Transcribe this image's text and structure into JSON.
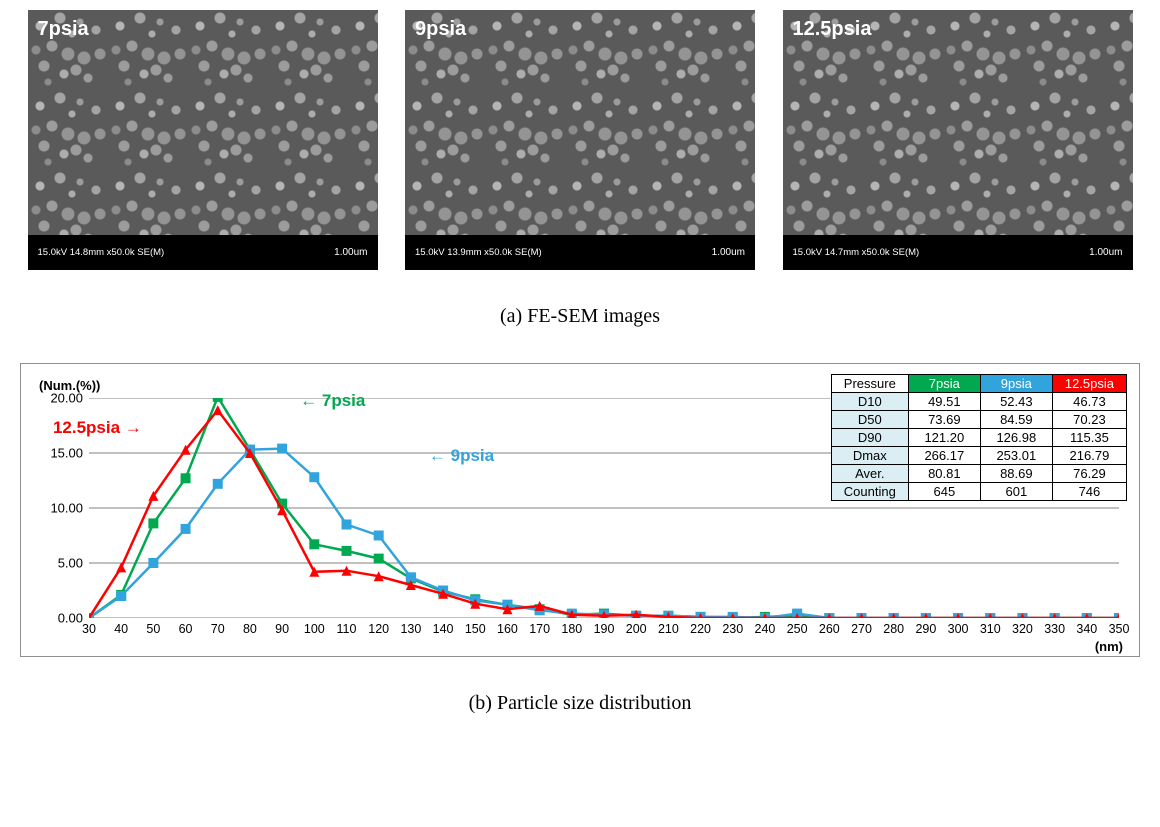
{
  "sem": {
    "panels": [
      {
        "label": "7psia",
        "footer": "15.0kV 14.8mm x50.0k SE(M)",
        "scale": "1.00um"
      },
      {
        "label": "9psia",
        "footer": "15.0kV 13.9mm x50.0k SE(M)",
        "scale": "1.00um"
      },
      {
        "label": "12.5psia",
        "footer": "15.0kV 14.7mm x50.0k SE(M)",
        "scale": "1.00um"
      }
    ],
    "caption": "(a) FE-SEM images"
  },
  "chart": {
    "type": "line",
    "ylabel": "(Num.(%))",
    "xlabel": "(nm)",
    "xmin": 30,
    "xmax": 350,
    "ymin": 0,
    "ymax": 20,
    "yticks": [
      "0.00",
      "5.00",
      "10.00",
      "15.00",
      "20.00"
    ],
    "xticks": [
      30,
      40,
      50,
      60,
      70,
      80,
      90,
      100,
      110,
      120,
      130,
      140,
      150,
      160,
      170,
      180,
      190,
      200,
      210,
      220,
      230,
      240,
      250,
      260,
      270,
      280,
      290,
      300,
      310,
      320,
      330,
      340,
      350
    ],
    "gridline_color": "#808080",
    "border_color": "#808080",
    "background_color": "#ffffff",
    "line_width": 2.5,
    "marker_size": 5,
    "series": [
      {
        "name": "7psia",
        "color": "#00a84f",
        "marker": "square",
        "label_pos": {
          "left_pct": 20.5,
          "top_pct": -3
        },
        "arrow": "left",
        "data": [
          [
            30,
            0
          ],
          [
            40,
            2.1
          ],
          [
            50,
            8.6
          ],
          [
            60,
            12.7
          ],
          [
            70,
            20.1
          ],
          [
            80,
            15.3
          ],
          [
            90,
            10.4
          ],
          [
            100,
            6.7
          ],
          [
            110,
            6.1
          ],
          [
            120,
            5.4
          ],
          [
            130,
            3.6
          ],
          [
            140,
            2.4
          ],
          [
            150,
            1.7
          ],
          [
            160,
            1.2
          ],
          [
            170,
            0.8
          ],
          [
            180,
            0.3
          ],
          [
            190,
            0.4
          ],
          [
            200,
            0.2
          ],
          [
            210,
            0.2
          ],
          [
            220,
            0.1
          ],
          [
            230,
            0.0
          ],
          [
            240,
            0.1
          ],
          [
            250,
            0.2
          ],
          [
            260,
            0.0
          ],
          [
            270,
            0.0
          ],
          [
            280,
            0.0
          ],
          [
            290,
            0.0
          ],
          [
            300,
            0.0
          ],
          [
            310,
            0.0
          ],
          [
            320,
            0.0
          ],
          [
            330,
            0.0
          ],
          [
            340,
            0.0
          ],
          [
            350,
            0.0
          ]
        ]
      },
      {
        "name": "9psia",
        "color": "#31a3dd",
        "marker": "square",
        "label_pos": {
          "left_pct": 33,
          "top_pct": 22
        },
        "arrow": "left",
        "data": [
          [
            30,
            0
          ],
          [
            40,
            2.0
          ],
          [
            50,
            5.0
          ],
          [
            60,
            8.1
          ],
          [
            70,
            12.2
          ],
          [
            80,
            15.3
          ],
          [
            90,
            15.4
          ],
          [
            100,
            12.8
          ],
          [
            110,
            8.5
          ],
          [
            120,
            7.5
          ],
          [
            130,
            3.7
          ],
          [
            140,
            2.5
          ],
          [
            150,
            1.6
          ],
          [
            160,
            1.2
          ],
          [
            170,
            0.7
          ],
          [
            180,
            0.4
          ],
          [
            190,
            0.3
          ],
          [
            200,
            0.2
          ],
          [
            210,
            0.2
          ],
          [
            220,
            0.1
          ],
          [
            230,
            0.1
          ],
          [
            240,
            0.0
          ],
          [
            250,
            0.4
          ],
          [
            260,
            0.0
          ],
          [
            270,
            0.0
          ],
          [
            280,
            0.0
          ],
          [
            290,
            0.0
          ],
          [
            300,
            0.0
          ],
          [
            310,
            0.0
          ],
          [
            320,
            0.0
          ],
          [
            330,
            0.0
          ],
          [
            340,
            0.0
          ],
          [
            350,
            0.0
          ]
        ]
      },
      {
        "name": "12.5psia",
        "color": "#ff0000",
        "marker": "triangle",
        "label_pos": {
          "left_pct": -3.5,
          "top_pct": 9
        },
        "arrow": "right",
        "data": [
          [
            30,
            0
          ],
          [
            40,
            4.6
          ],
          [
            50,
            11.1
          ],
          [
            60,
            15.3
          ],
          [
            70,
            18.9
          ],
          [
            80,
            15.0
          ],
          [
            90,
            9.8
          ],
          [
            100,
            4.2
          ],
          [
            110,
            4.3
          ],
          [
            120,
            3.8
          ],
          [
            130,
            3.0
          ],
          [
            140,
            2.2
          ],
          [
            150,
            1.3
          ],
          [
            160,
            0.8
          ],
          [
            170,
            1.1
          ],
          [
            180,
            0.3
          ],
          [
            190,
            0.2
          ],
          [
            200,
            0.3
          ],
          [
            210,
            0.1
          ],
          [
            220,
            0.0
          ],
          [
            230,
            0.0
          ],
          [
            240,
            0.0
          ],
          [
            250,
            0.0
          ],
          [
            260,
            0.0
          ],
          [
            270,
            0.0
          ],
          [
            280,
            0.0
          ],
          [
            290,
            0.0
          ],
          [
            300,
            0.0
          ],
          [
            310,
            0.0
          ],
          [
            320,
            0.0
          ],
          [
            330,
            0.0
          ],
          [
            340,
            0.0
          ],
          [
            350,
            0.0
          ]
        ]
      }
    ],
    "annotations": {
      "series_label_fontsize": 17
    },
    "table": {
      "header_row": [
        "Pressure",
        "7psia",
        "9psia",
        "12.5psia"
      ],
      "header_colors": [
        "#ffffff",
        "#00a84f",
        "#31a3dd",
        "#ff0000"
      ],
      "header_text_colors": [
        "#000000",
        "#ffffff",
        "#ffffff",
        "#ffffff"
      ],
      "rowhead_bg": "#daeef3",
      "rows": [
        [
          "D10",
          "49.51",
          "52.43",
          "46.73"
        ],
        [
          "D50",
          "73.69",
          "84.59",
          "70.23"
        ],
        [
          "D90",
          "121.20",
          "126.98",
          "115.35"
        ],
        [
          "Dmax",
          "266.17",
          "253.01",
          "216.79"
        ],
        [
          "Aver.",
          "80.81",
          "88.69",
          "76.29"
        ],
        [
          "Counting",
          "645",
          "601",
          "746"
        ]
      ]
    },
    "caption": "(b) Particle size distribution"
  }
}
